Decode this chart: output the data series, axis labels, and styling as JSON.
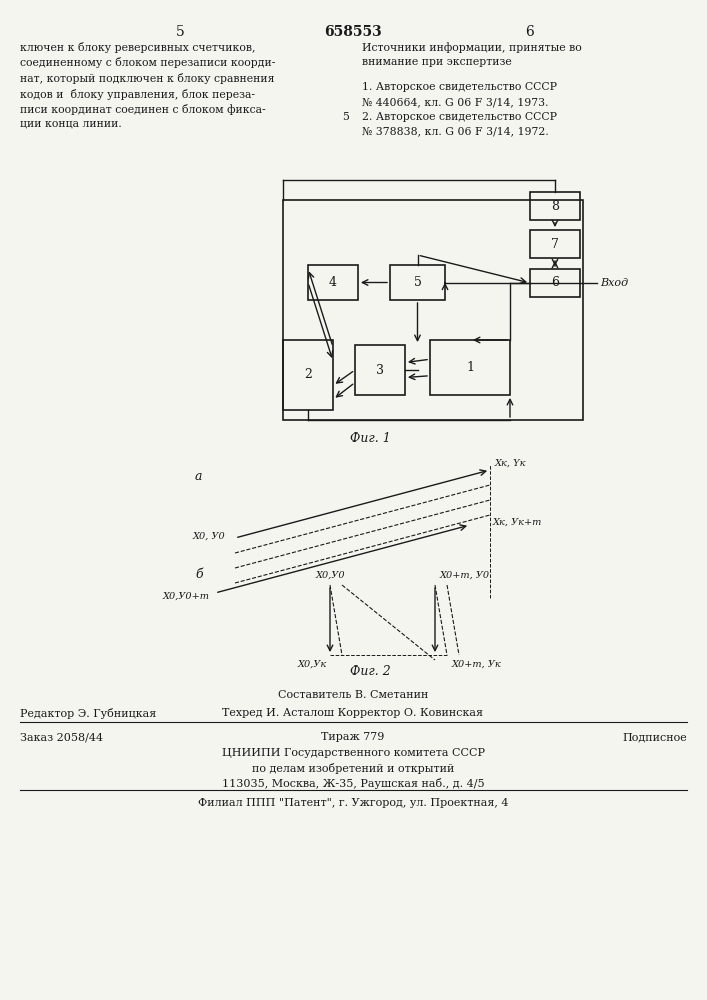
{
  "page_number_left": "5",
  "page_number_center": "658553",
  "page_number_right": "6",
  "left_text": "ключен к блоку реверсивных счетчиков,\nсоединенному с блоком перезаписи коорди-\nнат, который подключен к блоку сравнения\nкодов и  блоку управления, блок переза-\nписи координат соединен с блоком фикса-\nции конца линии.",
  "right_text_title": "Источники информации, принятые во\nвнимание при экспертизе",
  "right_text_body": "1. Авторское свидетельство СССР\n№ 440664, кл. G 06 F 3/14, 1973.\n2. Авторское свидетельство СССР\n№ 378838, кл. G 06 F 3/14, 1972.",
  "margin_note": "5",
  "fig1_label": "Фиг. 1",
  "fig2_label": "Фиг. 2",
  "vhod_label": "Вход",
  "fig1_a_label": "а",
  "fig1_b_label": "б",
  "label_xk_yk": "Xк, Yк",
  "label_x0_y0": "Х0, У0",
  "label_xk_ykm": "Хк, Ук+m",
  "label_x0_y0m": "Х0,У0+m",
  "label_x0_y0_b": "Х0,У0",
  "label_x0m_y0_b": "Х0+m, У0",
  "label_x0_yk_b": "Х0,Ук",
  "label_x0m_yk_b": "Х0+m, Ук",
  "footer_line1": "Составитель В. Сметанин",
  "footer_line2_left": "Редактор Э. Губницкая",
  "footer_line2_center": "Техред И. Асталош Корректор О. Ковинская",
  "footer_line3_left": "Заказ 2058/44",
  "footer_line3_center": "Тираж 779",
  "footer_line3_right": "Подписное",
  "footer_line4": "ЦНИИПИ Государственного комитета СССР",
  "footer_line5": "по делам изобретений и открытий",
  "footer_line6": "113035, Москва, Ж-35, Раушская наб., д. 4/5",
  "footer_line7": "Филиал ППП \"Патент\", г. Ужгород, ул. Проектная, 4",
  "bg_color": "#f5f5f0",
  "text_color": "#1a1a1a",
  "box_color": "#1a1a1a",
  "line_color": "#1a1a1a"
}
